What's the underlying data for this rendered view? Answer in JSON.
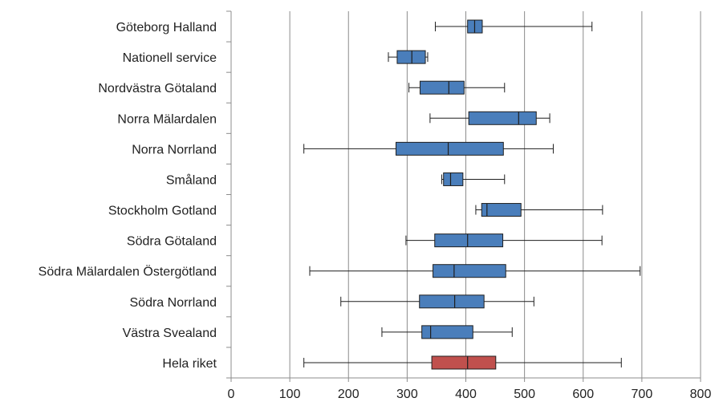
{
  "chart_data": {
    "type": "boxplot",
    "orientation": "horizontal",
    "title": "",
    "xlabel": "",
    "ylabel": "",
    "xlim": [
      0,
      800
    ],
    "xticks": [
      0,
      100,
      200,
      300,
      400,
      500,
      600,
      700,
      800
    ],
    "grid": "vertical",
    "legend": "none",
    "colors": {
      "box": "#4a7ebb",
      "box_highlight": "#c0504d",
      "border": "#1f1f1f",
      "grid": "#8c8c8c"
    },
    "categories": [
      "Göteborg Halland",
      "Nationell service",
      "Nordvästra Götaland",
      "Norra Mälardalen",
      "Norra Norrland",
      "Småland",
      "Stockholm Gotland",
      "Södra Götaland",
      "Södra Mälardalen Östergötland",
      "Södra Norrland",
      "Västra Svealand",
      "Hela riket"
    ],
    "boxes": [
      {
        "min": 348,
        "q1": 403,
        "median": 415,
        "q3": 428,
        "max": 615
      },
      {
        "min": 268,
        "q1": 283,
        "median": 308,
        "q3": 331,
        "max": 335
      },
      {
        "min": 303,
        "q1": 322,
        "median": 371,
        "q3": 397,
        "max": 466
      },
      {
        "min": 339,
        "q1": 405,
        "median": 490,
        "q3": 520,
        "max": 543
      },
      {
        "min": 124,
        "q1": 281,
        "median": 370,
        "q3": 464,
        "max": 549
      },
      {
        "min": 359,
        "q1": 362,
        "median": 374,
        "q3": 395,
        "max": 466
      },
      {
        "min": 417,
        "q1": 427,
        "median": 436,
        "q3": 494,
        "max": 633
      },
      {
        "min": 298,
        "q1": 347,
        "median": 403,
        "q3": 463,
        "max": 632
      },
      {
        "min": 134,
        "q1": 344,
        "median": 380,
        "q3": 468,
        "max": 697
      },
      {
        "min": 187,
        "q1": 321,
        "median": 381,
        "q3": 431,
        "max": 516
      },
      {
        "min": 257,
        "q1": 325,
        "median": 340,
        "q3": 412,
        "max": 479
      },
      {
        "min": 124,
        "q1": 342,
        "median": 403,
        "q3": 451,
        "max": 665,
        "highlight": true
      }
    ]
  }
}
